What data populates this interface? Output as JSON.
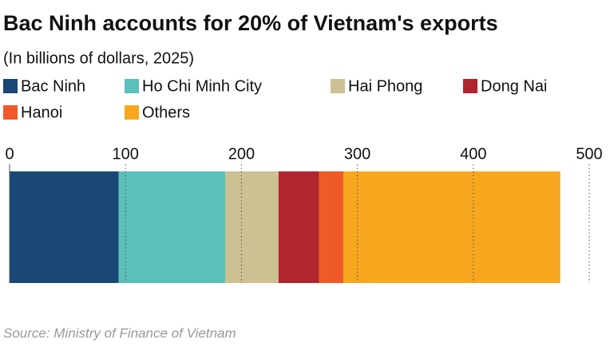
{
  "chart_data": {
    "type": "stacked-bar-horizontal",
    "title": "Bac Ninh accounts for 20% of Vietnam's exports",
    "subtitle": "(In billions of dollars, 2025)",
    "source": "Source: Ministry of Finance of Vietnam",
    "series": [
      {
        "name": "Bac Ninh",
        "color": "#1a4876",
        "values": [
          94
        ]
      },
      {
        "name": "Ho Chi Minh City",
        "color": "#5bbfbb",
        "values": [
          92
        ]
      },
      {
        "name": "Hai Phong",
        "color": "#cdc092",
        "values": [
          46
        ]
      },
      {
        "name": "Dong Nai",
        "color": "#b0252e",
        "values": [
          35
        ]
      },
      {
        "name": "Hanoi",
        "color": "#f05a28",
        "values": [
          21
        ]
      },
      {
        "name": "Others",
        "color": "#f7a71e",
        "values": [
          187
        ]
      }
    ],
    "xlim": [
      0,
      500
    ],
    "xticks": [
      0,
      100,
      200,
      300,
      400,
      500
    ],
    "grid": true
  }
}
